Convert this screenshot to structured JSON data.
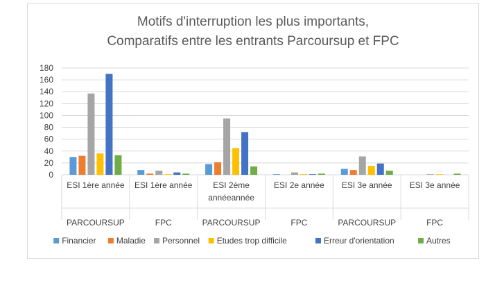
{
  "chart_data": {
    "type": "bar",
    "title_lines": [
      "Motifs d'interruption les plus importants,",
      "Comparatifs entre les entrants Parcoursup et FPC"
    ],
    "xlabel": "",
    "ylabel": "",
    "ylim": [
      0,
      180
    ],
    "y_ticks": [
      0,
      20,
      40,
      60,
      80,
      100,
      120,
      140,
      160,
      180
    ],
    "grid": true,
    "legend_position": "bottom",
    "categories": [
      {
        "label_lines": [
          "ESI 1ère année"
        ],
        "group": "PARCOURSUP"
      },
      {
        "label_lines": [
          "ESI 1ère année"
        ],
        "group": "FPC"
      },
      {
        "label_lines": [
          "ESI 2ème",
          "annéeannée"
        ],
        "group": "PARCOURSUP"
      },
      {
        "label_lines": [
          "ESI 2e année"
        ],
        "group": "FPC"
      },
      {
        "label_lines": [
          "ESI 3e année"
        ],
        "group": "PARCOURSUP"
      },
      {
        "label_lines": [
          "ESI 3e année"
        ],
        "group": "FPC"
      }
    ],
    "series": [
      {
        "name": "Financier",
        "color": "#5b9bd5",
        "values": [
          30,
          8,
          18,
          1,
          10,
          0
        ]
      },
      {
        "name": "Maladie",
        "color": "#ed7d31",
        "values": [
          32,
          2,
          21,
          0,
          8,
          0
        ]
      },
      {
        "name": "Personnel",
        "color": "#a5a5a5",
        "values": [
          137,
          7,
          95,
          4,
          31,
          1
        ]
      },
      {
        "name": "Etudes trop difficile",
        "color": "#ffc000",
        "values": [
          36,
          1,
          45,
          1,
          15,
          1
        ]
      },
      {
        "name": "Erreur d'orientation",
        "color": "#4472c4",
        "values": [
          170,
          4,
          72,
          1,
          19,
          0
        ]
      },
      {
        "name": "Autres",
        "color": "#70ad47",
        "values": [
          33,
          2,
          14,
          2,
          7,
          2
        ]
      }
    ]
  }
}
